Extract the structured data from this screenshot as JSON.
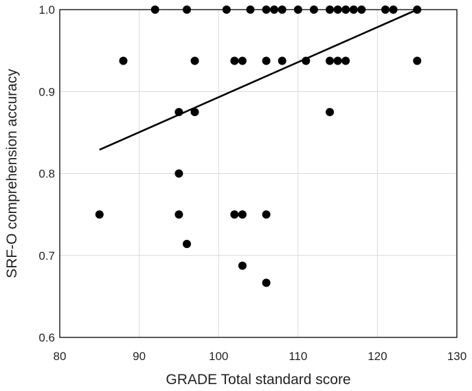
{
  "chart_data": {
    "type": "scatter",
    "title": "",
    "xlabel": "GRADE Total standard score",
    "ylabel": "SRF-O comprehension accuracy",
    "xlim": [
      80,
      130
    ],
    "ylim": [
      0.6,
      1.0
    ],
    "xticks": [
      80,
      90,
      100,
      110,
      120,
      130
    ],
    "xtick_labels": [
      "80",
      "90",
      "100",
      "110",
      "120",
      "130"
    ],
    "yticks": [
      0.6,
      0.7,
      0.8,
      0.9,
      1.0
    ],
    "ytick_labels": [
      "0.6",
      "0.7",
      "0.8",
      "0.9",
      "1.0"
    ],
    "grid": true,
    "legend": "none",
    "marker_color": "#000000",
    "grid_color": "#d9d9d9",
    "points": [
      {
        "x": 85,
        "y": 0.75
      },
      {
        "x": 88,
        "y": 0.9375
      },
      {
        "x": 92,
        "y": 1.0
      },
      {
        "x": 95,
        "y": 0.875
      },
      {
        "x": 95,
        "y": 0.8
      },
      {
        "x": 95,
        "y": 0.75
      },
      {
        "x": 96,
        "y": 1.0
      },
      {
        "x": 96,
        "y": 0.714
      },
      {
        "x": 97,
        "y": 0.9375
      },
      {
        "x": 97,
        "y": 0.875
      },
      {
        "x": 101,
        "y": 1.0
      },
      {
        "x": 102,
        "y": 0.9375
      },
      {
        "x": 102,
        "y": 0.75
      },
      {
        "x": 103,
        "y": 0.9375
      },
      {
        "x": 103,
        "y": 0.75
      },
      {
        "x": 103,
        "y": 0.6875
      },
      {
        "x": 104,
        "y": 1.0
      },
      {
        "x": 106,
        "y": 1.0
      },
      {
        "x": 106,
        "y": 0.9375
      },
      {
        "x": 106,
        "y": 0.75
      },
      {
        "x": 106,
        "y": 0.6667
      },
      {
        "x": 107,
        "y": 1.0
      },
      {
        "x": 108,
        "y": 1.0
      },
      {
        "x": 108,
        "y": 0.9375
      },
      {
        "x": 110,
        "y": 1.0
      },
      {
        "x": 111,
        "y": 0.9375
      },
      {
        "x": 112,
        "y": 1.0
      },
      {
        "x": 114,
        "y": 1.0
      },
      {
        "x": 114,
        "y": 0.9375
      },
      {
        "x": 114,
        "y": 0.875
      },
      {
        "x": 115,
        "y": 1.0
      },
      {
        "x": 115,
        "y": 0.9375
      },
      {
        "x": 116,
        "y": 1.0
      },
      {
        "x": 116,
        "y": 0.9375
      },
      {
        "x": 117,
        "y": 1.0
      },
      {
        "x": 118,
        "y": 1.0
      },
      {
        "x": 121,
        "y": 1.0
      },
      {
        "x": 122,
        "y": 1.0
      },
      {
        "x": 125,
        "y": 1.0
      },
      {
        "x": 125,
        "y": 0.9375
      }
    ],
    "trendline": {
      "x": [
        85,
        125
      ],
      "y": [
        0.829,
        1.0
      ]
    }
  }
}
